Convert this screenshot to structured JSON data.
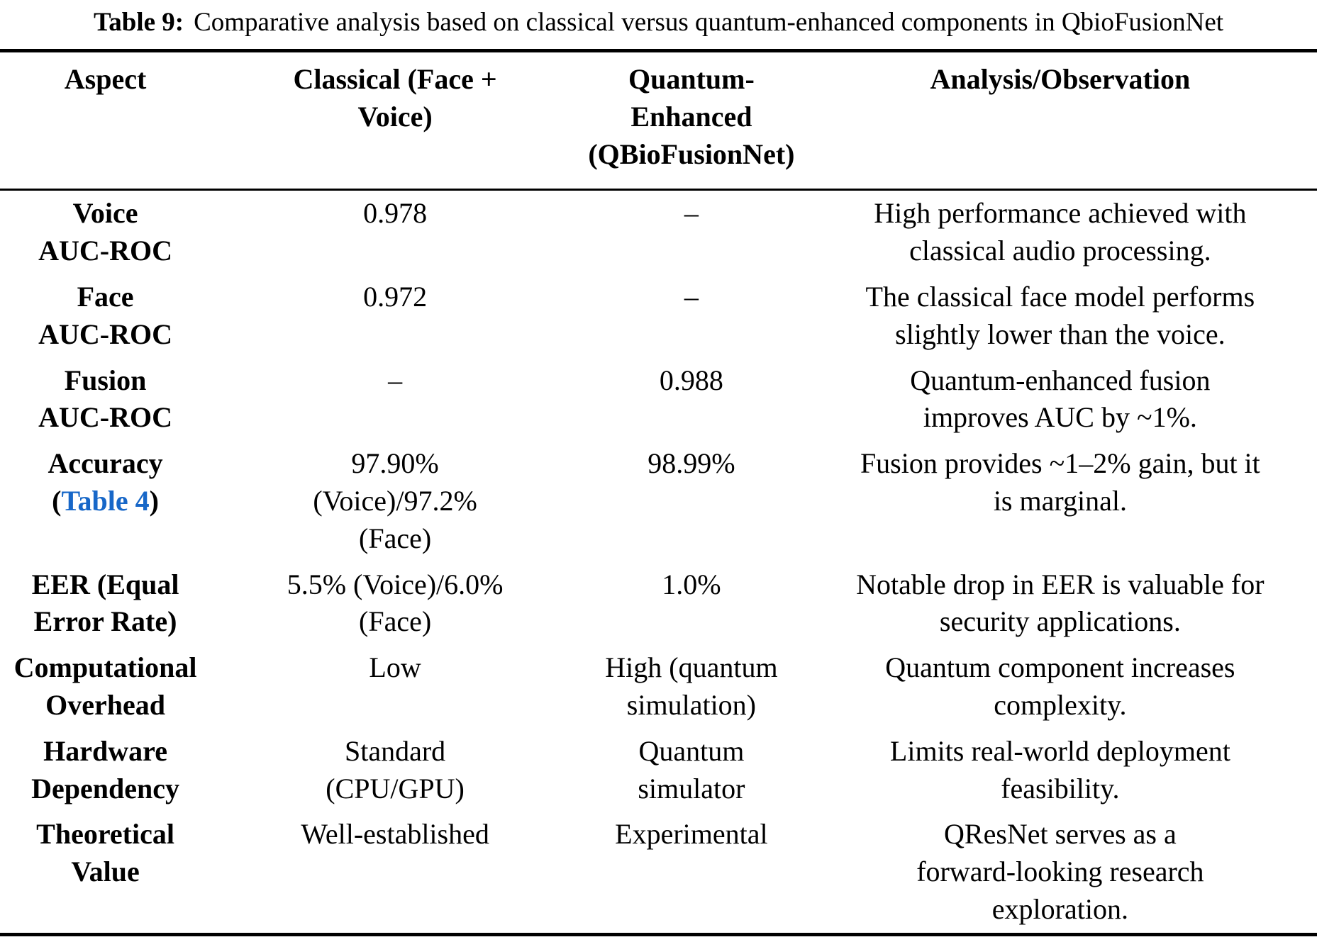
{
  "caption": {
    "label": "Table 9:",
    "text": "Comparative analysis based on classical versus quantum-enhanced components in QbioFusionNet"
  },
  "colors": {
    "text": "#000000",
    "background": "#ffffff",
    "rule": "#000000",
    "link_blue": "#1767c8"
  },
  "table": {
    "headers": [
      "Aspect",
      "Classical (Face +\nVoice)",
      "Quantum-\nEnhanced\n(QBioFusionNet)",
      "Analysis/Observation"
    ],
    "rows": [
      {
        "aspect": "Voice\nAUC-ROC",
        "classical": "0.978",
        "quantum": "–",
        "analysis": "High performance achieved with\nclassical audio processing."
      },
      {
        "aspect": "Face\nAUC-ROC",
        "classical": "0.972",
        "quantum": "–",
        "analysis": "The classical face model performs\nslightly lower than the voice."
      },
      {
        "aspect": "Fusion\nAUC-ROC",
        "classical": "–",
        "quantum": "0.988",
        "analysis": "Quantum-enhanced fusion\nimproves AUC by ~1%."
      },
      {
        "aspect": "Accuracy",
        "ref_open": "(",
        "ref_link": "Table 4",
        "ref_close": ")",
        "classical": "97.90%\n(Voice)/97.2%\n(Face)",
        "quantum": "98.99%",
        "analysis": "Fusion provides ~1–2% gain, but it\nis marginal."
      },
      {
        "aspect": "EER (Equal\nError Rate)",
        "classical": "5.5% (Voice)/6.0%\n(Face)",
        "quantum": "1.0%",
        "analysis": "Notable drop in EER is valuable for\nsecurity applications."
      },
      {
        "aspect": "Computational\nOverhead",
        "classical": "Low",
        "quantum": "High (quantum\nsimulation)",
        "analysis": "Quantum component increases\ncomplexity."
      },
      {
        "aspect": "Hardware\nDependency",
        "classical": "Standard\n(CPU/GPU)",
        "quantum": "Quantum\nsimulator",
        "analysis": "Limits real-world deployment\nfeasibility."
      },
      {
        "aspect": "Theoretical\nValue",
        "classical": "Well-established",
        "quantum": "Experimental",
        "analysis": "QResNet serves as a\nforward-looking research\nexploration."
      }
    ]
  }
}
